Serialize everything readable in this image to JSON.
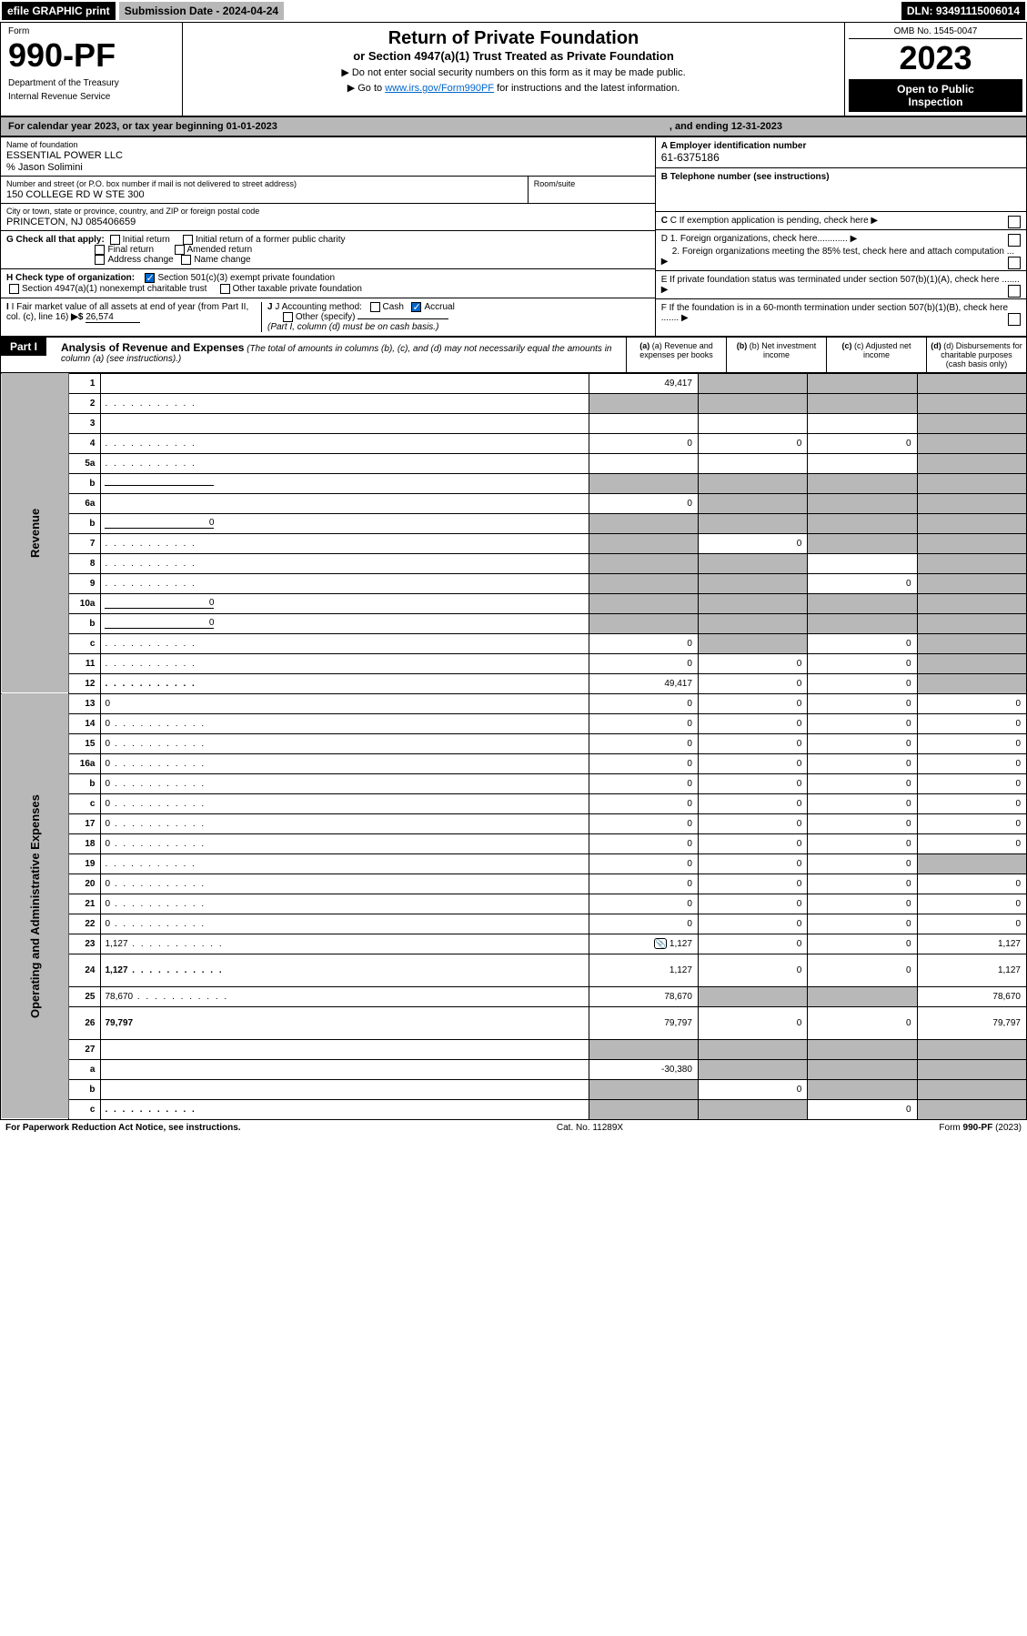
{
  "topbar": {
    "efile": "efile GRAPHIC print",
    "submission": "Submission Date - 2024-04-24",
    "dln": "DLN: 93491115006014"
  },
  "header": {
    "form_label": "Form",
    "form_number": "990-PF",
    "dept": "Department of the Treasury",
    "irs": "Internal Revenue Service",
    "title": "Return of Private Foundation",
    "subtitle": "or Section 4947(a)(1) Trust Treated as Private Foundation",
    "note1": "▶ Do not enter social security numbers on this form as it may be made public.",
    "note2_pre": "▶ Go to ",
    "note2_link": "www.irs.gov/Form990PF",
    "note2_post": " for instructions and the latest information.",
    "omb": "OMB No. 1545-0047",
    "year": "2023",
    "inspect1": "Open to Public",
    "inspect2": "Inspection"
  },
  "cal": {
    "pre": "For calendar year 2023, or tax year beginning 01-01-2023",
    "mid": ", and ending 12-31-2023"
  },
  "info": {
    "name_lbl": "Name of foundation",
    "name": "ESSENTIAL POWER LLC",
    "care": "% Jason Solimini",
    "addr_lbl": "Number and street (or P.O. box number if mail is not delivered to street address)",
    "addr": "150 COLLEGE RD W STE 300",
    "room_lbl": "Room/suite",
    "city_lbl": "City or town, state or province, country, and ZIP or foreign postal code",
    "city": "PRINCETON, NJ  085406659",
    "a_lbl": "A Employer identification number",
    "a_val": "61-6375186",
    "b_lbl": "B Telephone number (see instructions)",
    "c_lbl": "C If exemption application is pending, check here",
    "d1": "D 1. Foreign organizations, check here............",
    "d2": "2. Foreign organizations meeting the 85% test, check here and attach computation ...",
    "e_lbl": "E  If private foundation status was terminated under section 507(b)(1)(A), check here .......",
    "f_lbl": "F  If the foundation is in a 60-month termination under section 507(b)(1)(B), check here .......",
    "g_lbl": "G Check all that apply:",
    "g_initial": "Initial return",
    "g_initial_former": "Initial return of a former public charity",
    "g_final": "Final return",
    "g_amended": "Amended return",
    "g_addr": "Address change",
    "g_name": "Name change",
    "h_lbl": "H Check type of organization:",
    "h_501c3": "Section 501(c)(3) exempt private foundation",
    "h_4947": "Section 4947(a)(1) nonexempt charitable trust",
    "h_other": "Other taxable private foundation",
    "i_lbl": "I Fair market value of all assets at end of year (from Part II, col. (c), line 16)",
    "i_val": "26,574",
    "j_lbl": "J Accounting method:",
    "j_cash": "Cash",
    "j_accrual": "Accrual",
    "j_other": "Other (specify)",
    "j_note": "(Part I, column (d) must be on cash basis.)"
  },
  "part1": {
    "label": "Part I",
    "title": "Analysis of Revenue and Expenses",
    "subtitle": "(The total of amounts in columns (b), (c), and (d) may not necessarily equal the amounts in column (a) (see instructions).)",
    "col_a": "(a) Revenue and expenses per books",
    "col_b": "(b) Net investment income",
    "col_c": "(c) Adjusted net income",
    "col_d": "(d) Disbursements for charitable purposes (cash basis only)"
  },
  "sides": {
    "revenue": "Revenue",
    "expenses": "Operating and Administrative Expenses"
  },
  "rows": [
    {
      "n": "1",
      "d": "",
      "a": "49,417",
      "b": "",
      "c": "",
      "sb": true,
      "sc": true,
      "sd": true
    },
    {
      "n": "2",
      "d": "",
      "a": "",
      "b": "",
      "c": "",
      "sa": true,
      "sb": true,
      "sc": true,
      "sd": true,
      "dots": true
    },
    {
      "n": "3",
      "d": "",
      "a": "",
      "b": "",
      "c": "",
      "sd": true
    },
    {
      "n": "4",
      "d": "",
      "a": "0",
      "b": "0",
      "c": "0",
      "sd": true,
      "dots": true
    },
    {
      "n": "5a",
      "d": "",
      "a": "",
      "b": "",
      "c": "",
      "sd": true,
      "dots": true
    },
    {
      "n": "b",
      "d": "",
      "a": "",
      "b": "",
      "c": "",
      "sa": true,
      "sb": true,
      "sc": true,
      "sd": true,
      "under": true
    },
    {
      "n": "6a",
      "d": "",
      "a": "0",
      "b": "",
      "c": "",
      "sb": true,
      "sc": true,
      "sd": true
    },
    {
      "n": "b",
      "d": "",
      "a": "",
      "b": "",
      "c": "",
      "sa": true,
      "sb": true,
      "sc": true,
      "sd": true,
      "under": true,
      "uv": "0"
    },
    {
      "n": "7",
      "d": "",
      "a": "",
      "b": "0",
      "c": "",
      "sa": true,
      "sc": true,
      "sd": true,
      "dots": true
    },
    {
      "n": "8",
      "d": "",
      "a": "",
      "b": "",
      "c": "",
      "sa": true,
      "sb": true,
      "sd": true,
      "dots": true
    },
    {
      "n": "9",
      "d": "",
      "a": "",
      "b": "",
      "c": "0",
      "sa": true,
      "sb": true,
      "sd": true,
      "dots": true
    },
    {
      "n": "10a",
      "d": "",
      "a": "",
      "b": "",
      "c": "",
      "sa": true,
      "sb": true,
      "sc": true,
      "sd": true,
      "under": true,
      "uv": "0"
    },
    {
      "n": "b",
      "d": "",
      "a": "",
      "b": "",
      "c": "",
      "sa": true,
      "sb": true,
      "sc": true,
      "sd": true,
      "dots": true,
      "under": true,
      "uv": "0"
    },
    {
      "n": "c",
      "d": "",
      "a": "0",
      "b": "",
      "c": "0",
      "sb": true,
      "sd": true,
      "dots": true
    },
    {
      "n": "11",
      "d": "",
      "a": "0",
      "b": "0",
      "c": "0",
      "sd": true,
      "dots": true
    },
    {
      "n": "12",
      "d": "",
      "a": "49,417",
      "b": "0",
      "c": "0",
      "bold": true,
      "sd": true,
      "dots": true
    },
    {
      "n": "13",
      "d": "0",
      "a": "0",
      "b": "0",
      "c": "0"
    },
    {
      "n": "14",
      "d": "0",
      "a": "0",
      "b": "0",
      "c": "0",
      "dots": true
    },
    {
      "n": "15",
      "d": "0",
      "a": "0",
      "b": "0",
      "c": "0",
      "dots": true
    },
    {
      "n": "16a",
      "d": "0",
      "a": "0",
      "b": "0",
      "c": "0",
      "dots": true
    },
    {
      "n": "b",
      "d": "0",
      "a": "0",
      "b": "0",
      "c": "0",
      "dots": true
    },
    {
      "n": "c",
      "d": "0",
      "a": "0",
      "b": "0",
      "c": "0",
      "dots": true
    },
    {
      "n": "17",
      "d": "0",
      "a": "0",
      "b": "0",
      "c": "0",
      "dots": true
    },
    {
      "n": "18",
      "d": "0",
      "a": "0",
      "b": "0",
      "c": "0",
      "dots": true
    },
    {
      "n": "19",
      "d": "",
      "a": "0",
      "b": "0",
      "c": "0",
      "sd": true,
      "dots": true
    },
    {
      "n": "20",
      "d": "0",
      "a": "0",
      "b": "0",
      "c": "0",
      "dots": true
    },
    {
      "n": "21",
      "d": "0",
      "a": "0",
      "b": "0",
      "c": "0",
      "dots": true
    },
    {
      "n": "22",
      "d": "0",
      "a": "0",
      "b": "0",
      "c": "0",
      "dots": true
    },
    {
      "n": "23",
      "d": "1,127",
      "a": "1,127",
      "b": "0",
      "c": "0",
      "dots": true,
      "icon": true
    },
    {
      "n": "24",
      "d": "1,127",
      "a": "1,127",
      "b": "0",
      "c": "0",
      "bold": true,
      "dots": true,
      "tall": true
    },
    {
      "n": "25",
      "d": "78,670",
      "a": "78,670",
      "b": "",
      "c": "",
      "sb": true,
      "sc": true,
      "dots": true
    },
    {
      "n": "26",
      "d": "79,797",
      "a": "79,797",
      "b": "0",
      "c": "0",
      "bold": true,
      "tall": true
    },
    {
      "n": "27",
      "d": "",
      "a": "",
      "b": "",
      "c": "",
      "sa": true,
      "sb": true,
      "sc": true,
      "sd": true
    },
    {
      "n": "a",
      "d": "",
      "a": "-30,380",
      "b": "",
      "c": "",
      "bold": true,
      "sb": true,
      "sc": true,
      "sd": true
    },
    {
      "n": "b",
      "d": "",
      "a": "",
      "b": "0",
      "c": "",
      "bold": true,
      "sa": true,
      "sc": true,
      "sd": true
    },
    {
      "n": "c",
      "d": "",
      "a": "",
      "b": "",
      "c": "0",
      "bold": true,
      "sa": true,
      "sb": true,
      "sd": true,
      "dots": true
    }
  ],
  "footer": {
    "left": "For Paperwork Reduction Act Notice, see instructions.",
    "mid": "Cat. No. 11289X",
    "right": "Form 990-PF (2023)"
  }
}
